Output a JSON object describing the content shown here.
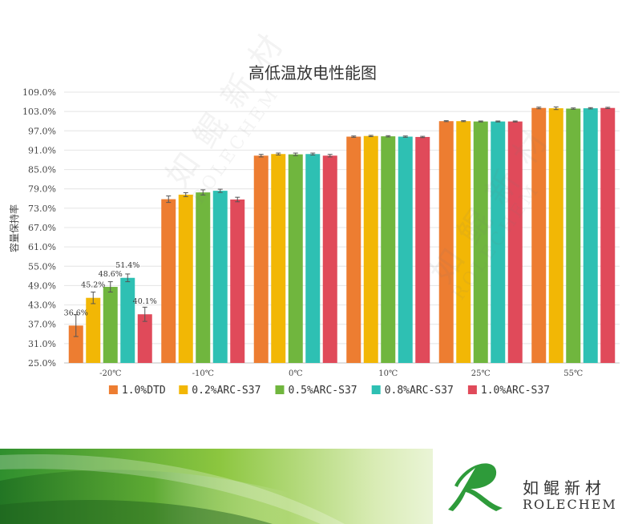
{
  "chart_data": {
    "type": "bar",
    "title": "高低温放电性能图",
    "xlabel": "",
    "ylabel": "容量保持率",
    "ylim": [
      25,
      109
    ],
    "ytick_step": 6,
    "yticks": [
      "25.0%",
      "31.0%",
      "37.0%",
      "43.0%",
      "49.0%",
      "55.0%",
      "61.0%",
      "67.0%",
      "73.0%",
      "79.0%",
      "85.0%",
      "91.0%",
      "97.0%",
      "103.0%",
      "109.0%"
    ],
    "grid": true,
    "legend_position": "bottom",
    "categories": [
      "-20℃",
      "-10℃",
      "0℃",
      "10℃",
      "25℃",
      "55℃"
    ],
    "series": [
      {
        "name": "1.0%DTD",
        "color": "#ED7D31",
        "values": [
          36.6,
          75.8,
          89.3,
          95.2,
          100.0,
          104.1
        ],
        "errors": [
          3.4,
          1.0,
          0.4,
          0.2,
          0.15,
          0.25
        ]
      },
      {
        "name": "0.2%ARC-S37",
        "color": "#F2B705",
        "values": [
          45.2,
          77.2,
          89.8,
          95.4,
          100.0,
          104.0
        ],
        "errors": [
          1.8,
          0.6,
          0.3,
          0.2,
          0.15,
          0.4
        ]
      },
      {
        "name": "0.5%ARC-S37",
        "color": "#70B63E",
        "values": [
          48.6,
          77.9,
          89.7,
          95.3,
          99.9,
          103.9
        ],
        "errors": [
          1.6,
          0.8,
          0.4,
          0.2,
          0.15,
          0.2
        ]
      },
      {
        "name": "0.8%ARC-S37",
        "color": "#2EC0B3",
        "values": [
          51.4,
          78.4,
          89.8,
          95.2,
          99.9,
          104.0
        ],
        "errors": [
          1.2,
          0.5,
          0.3,
          0.2,
          0.15,
          0.2
        ]
      },
      {
        "name": "1.0%ARC-S37",
        "color": "#E04A5A",
        "values": [
          40.1,
          75.7,
          89.3,
          95.1,
          99.9,
          104.1
        ],
        "errors": [
          2.2,
          0.7,
          0.4,
          0.2,
          0.15,
          0.2
        ]
      }
    ],
    "data_labels": [
      {
        "category": "-20℃",
        "series": "1.0%DTD",
        "text": "36.6%"
      },
      {
        "category": "-20℃",
        "series": "0.2%ARC-S37",
        "text": "45.2%"
      },
      {
        "category": "-20℃",
        "series": "0.5%ARC-S37",
        "text": "48.6%"
      },
      {
        "category": "-20℃",
        "series": "0.8%ARC-S37",
        "text": "51.4%"
      },
      {
        "category": "-20℃",
        "series": "1.0%ARC-S37",
        "text": "40.1%"
      }
    ]
  },
  "legend_items": [
    {
      "label": "1.0%DTD",
      "color": "#ED7D31"
    },
    {
      "label": "0.2%ARC-S37",
      "color": "#F2B705"
    },
    {
      "label": "0.5%ARC-S37",
      "color": "#70B63E"
    },
    {
      "label": "0.8%ARC-S37",
      "color": "#2EC0B3"
    },
    {
      "label": "1.0%ARC-S37",
      "color": "#E04A5A"
    }
  ],
  "brand": {
    "name_cn": "如鲲新材",
    "name_en": "ROLECHEM",
    "logo_icon": "rolechem-r-logo-icon",
    "accent_color": "#2E9B3A"
  },
  "watermark": {
    "text_cn": "如鲲新材",
    "text_en": "ROLECHEM"
  }
}
